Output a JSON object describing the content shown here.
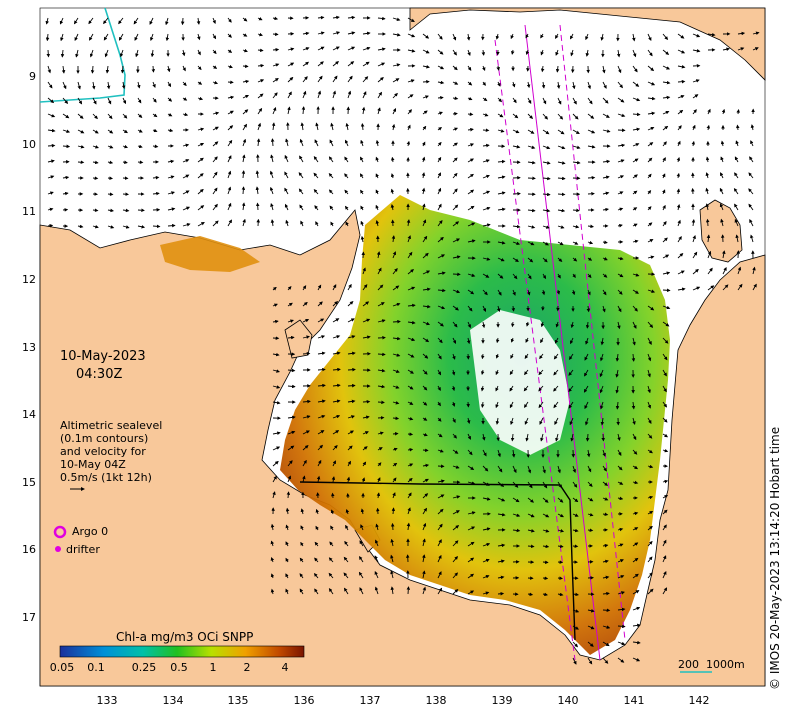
{
  "map": {
    "date": "10-May-2023",
    "time": "04:30Z",
    "credit": "© IMOS 20-May-2023 13:14:20 Hobart time",
    "info_lines": [
      "Altimetric sealevel",
      "(0.1m contours)",
      "and velocity for",
      "10-May 04Z",
      "0.5m/s (1kt 12h)"
    ],
    "legend": {
      "argo": "Argo 0",
      "drifter": "drifter"
    },
    "scale_bar": "200  1000m",
    "colors": {
      "land": "#f8c89a",
      "water": "#ffffff",
      "argo": "#e000e0",
      "drifter": "#e000e0",
      "altimetry_track": "#d000d0",
      "contour_200m": "#20c0c0"
    },
    "lat_ticks": [
      "9",
      "10",
      "11",
      "12",
      "13",
      "14",
      "15",
      "16",
      "17"
    ],
    "lon_ticks": [
      "133",
      "134",
      "135",
      "136",
      "137",
      "138",
      "139",
      "140",
      "141",
      "142"
    ]
  },
  "colorbar": {
    "title": "Chl-a mg/m3 OCi SNPP",
    "tick_labels": [
      "0.05",
      "0.1",
      "0.25",
      "0.5",
      "1",
      "2",
      "4"
    ],
    "colors": [
      "#1a2f9c",
      "#0090d8",
      "#00c0a8",
      "#20c020",
      "#b8e000",
      "#f0a000",
      "#c04800",
      "#7a1400"
    ]
  }
}
